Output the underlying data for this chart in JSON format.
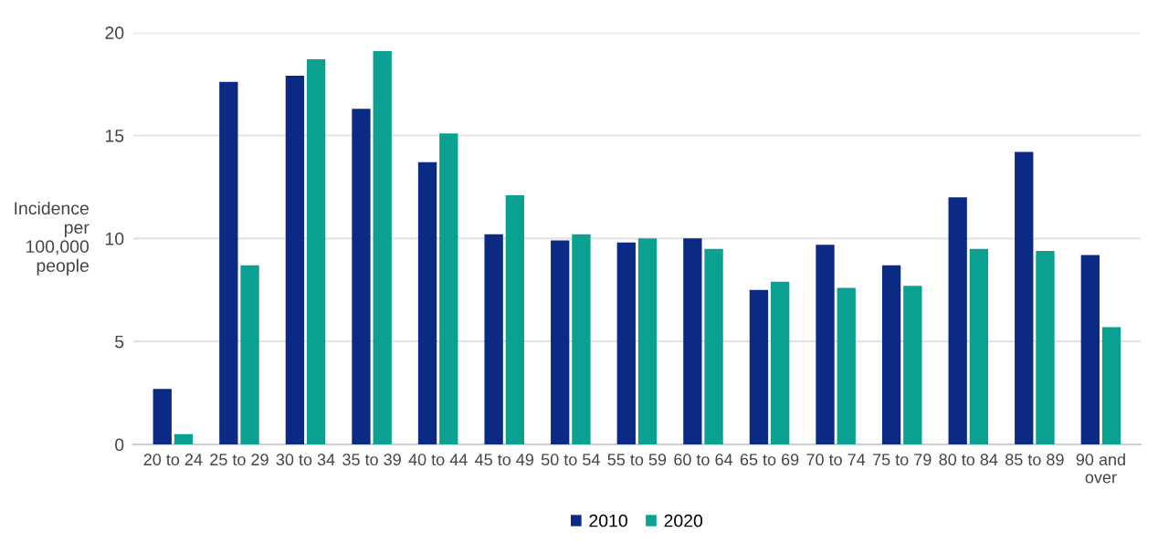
{
  "chart_data": {
    "type": "bar",
    "ylabel": "Incidence\nper\n100,000\npeople",
    "categories": [
      "20 to 24",
      "25 to 29",
      "30 to 34",
      "35 to 39",
      "40 to 44",
      "45 to 49",
      "50 to 54",
      "55 to 59",
      "60 to 64",
      "65 to 69",
      "70 to 74",
      "75 to 79",
      "80 to 84",
      "85 to 89",
      "90 and\nover"
    ],
    "series": [
      {
        "name": "2010",
        "color": "#0b2a84",
        "values": [
          2.7,
          17.6,
          17.9,
          16.3,
          13.7,
          10.2,
          9.9,
          9.8,
          10.0,
          7.5,
          9.7,
          8.7,
          12.0,
          14.2,
          9.2
        ]
      },
      {
        "name": "2020",
        "color": "#0aa192",
        "values": [
          0.5,
          8.7,
          18.7,
          19.1,
          15.1,
          12.1,
          10.2,
          10.0,
          9.5,
          7.9,
          7.6,
          7.7,
          9.5,
          9.4,
          5.7
        ]
      }
    ],
    "ylim": [
      0,
      20
    ],
    "yticks": [
      0,
      5,
      10,
      15,
      20
    ],
    "grid": "y",
    "legend": "bottom"
  }
}
